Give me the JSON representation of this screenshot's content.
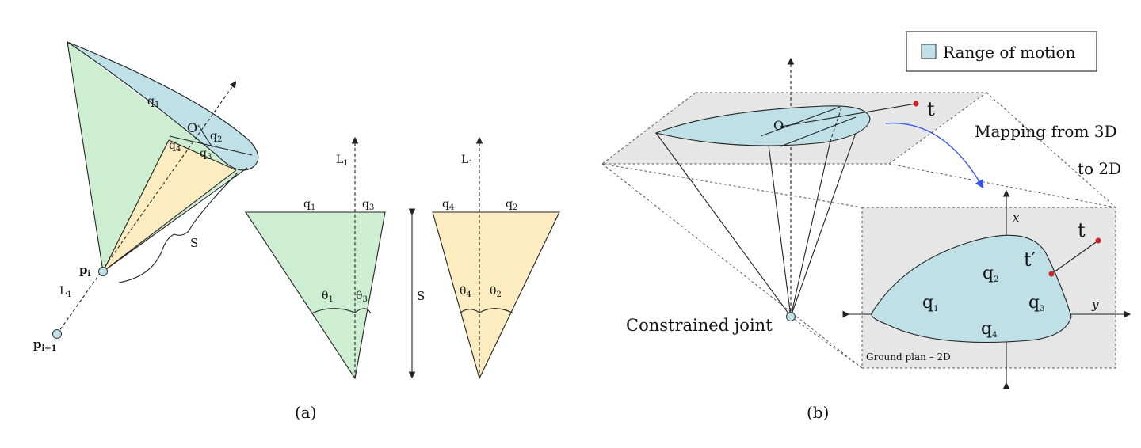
{
  "legend": {
    "label": "Range of motion",
    "swatch_color": "#bfe0e6"
  },
  "panel_a": {
    "caption": "(a)",
    "cone": {
      "q1": "q",
      "q1_sub": "1",
      "O": "O",
      "q2": "q",
      "q2_sub": "2",
      "q4": "q",
      "q4_sub": "4",
      "q3": "q",
      "q3_sub": "3",
      "S": "S",
      "pi": "p",
      "pi_sub": "i",
      "L1": "L",
      "L1_sub": "1",
      "pi1": "p",
      "pi1_sub": "i+1"
    },
    "triangle_left": {
      "L1": "L",
      "L1_sub": "1",
      "q1": "q",
      "q1_sub": "1",
      "q3": "q",
      "q3_sub": "3",
      "theta1": "θ",
      "theta1_sub": "1",
      "theta3": "θ",
      "theta3_sub": "3",
      "S": "S"
    },
    "triangle_right": {
      "L1": "L",
      "L1_sub": "1",
      "q4": "q",
      "q4_sub": "4",
      "q2": "q",
      "q2_sub": "2",
      "theta4": "θ",
      "theta4_sub": "4",
      "theta2": "θ",
      "theta2_sub": "2"
    }
  },
  "panel_b": {
    "caption": "(b)",
    "O": "O",
    "t": "t",
    "mapping_line1": "Mapping from 3D",
    "mapping_line2": "to 2D",
    "constrained_joint": "Constrained joint",
    "ground_plan": "Ground plan – 2D",
    "axis_x": "x",
    "axis_y": "y",
    "t2d": "t",
    "t_prime": "t′",
    "q2": "q",
    "q2_sub": "2",
    "q1": "q",
    "q1_sub": "1",
    "q3": "q",
    "q3_sub": "3",
    "q4": "q",
    "q4_sub": "4"
  }
}
